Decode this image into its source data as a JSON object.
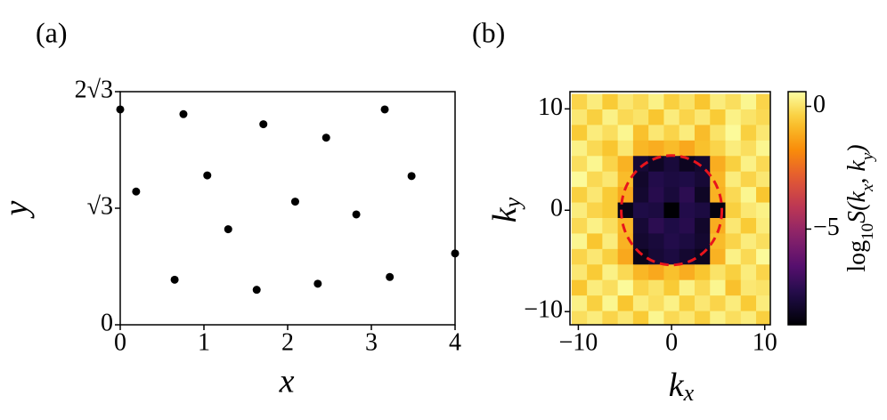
{
  "chart_data": [
    {
      "type": "scatter",
      "label": "(a)",
      "xlabel": "x",
      "ylabel": "y",
      "x": [
        0,
        0.755,
        1.71,
        2.46,
        3.16,
        0.19,
        1.04,
        2.09,
        2.82,
        3.48,
        1.29,
        0.65,
        1.63,
        2.36,
        3.22,
        4.0
      ],
      "y": [
        3.2,
        3.13,
        2.98,
        2.78,
        3.2,
        1.98,
        2.22,
        1.83,
        1.64,
        2.21,
        1.42,
        0.67,
        0.52,
        0.61,
        0.71,
        1.06
      ],
      "color": "#000000",
      "xlim": [
        0,
        4
      ],
      "ylim": [
        0,
        3.4641016
      ],
      "xticks": [
        0,
        1,
        2,
        3,
        4
      ],
      "yticks": [
        0,
        {
          "value": 1.7320508,
          "label": "√3"
        },
        {
          "value": 3.4641016,
          "label": "2√3"
        }
      ]
    },
    {
      "type": "heatmap",
      "label": "(b)",
      "xlabel": {
        "base": "k",
        "sub": "x"
      },
      "ylabel": {
        "base": "k",
        "sub": "y"
      },
      "kx": [
        -9.9,
        -8.25,
        -6.6,
        -4.95,
        -3.3,
        -1.65,
        0,
        1.65,
        3.3,
        4.95,
        6.6,
        8.25,
        9.9
      ],
      "ky": [
        10.71,
        9.18,
        7.65,
        6.12,
        4.59,
        3.06,
        1.53,
        0,
        -1.53,
        -3.06,
        -4.59,
        -6.12,
        -7.65,
        -9.18,
        -10.71
      ],
      "z": [
        [
          -0.3,
          0.2,
          -0.5,
          0.1,
          -0.2,
          0.3,
          -0.4,
          0.0,
          -0.6,
          0.2,
          -0.1,
          0.4,
          -0.3
        ],
        [
          0.1,
          -0.4,
          0.3,
          -0.2,
          0.0,
          -0.6,
          0.2,
          -0.3,
          0.1,
          -0.5,
          0.3,
          0.0,
          -0.2
        ],
        [
          -0.5,
          0.2,
          -0.1,
          0.4,
          -0.7,
          0.1,
          -0.3,
          0.2,
          -0.8,
          0.0,
          0.5,
          -0.4,
          0.1
        ],
        [
          0.3,
          -0.2,
          -0.6,
          0.1,
          -0.9,
          -1.1,
          -0.8,
          -1.2,
          -0.7,
          -0.3,
          0.2,
          -0.1,
          0.4
        ],
        [
          -0.1,
          0.4,
          -0.3,
          -1.0,
          -8.0,
          -8.3,
          -7.9,
          -8.4,
          -8.1,
          -1.1,
          -0.4,
          0.3,
          -0.2
        ],
        [
          0.5,
          -0.2,
          0.1,
          -0.8,
          -8.2,
          -7.6,
          -7.8,
          -7.7,
          -8.0,
          -0.9,
          0.2,
          -0.3,
          0.1
        ],
        [
          -0.4,
          0.1,
          -0.5,
          -1.2,
          -8.1,
          -7.5,
          -7.9,
          -7.4,
          -8.3,
          -1.0,
          -0.2,
          0.4,
          -0.6
        ],
        [
          0.2,
          -0.3,
          -0.5,
          -8.6,
          -7.7,
          -7.8,
          -8.9,
          -7.6,
          -7.8,
          -8.7,
          -0.4,
          0.1,
          0.3
        ],
        [
          -0.2,
          0.3,
          -0.1,
          -0.9,
          -8.0,
          -7.4,
          -7.7,
          -7.5,
          -8.2,
          -1.1,
          0.1,
          -0.5,
          0.2
        ],
        [
          0.4,
          -0.6,
          0.2,
          -1.0,
          -8.1,
          -7.9,
          -7.6,
          -7.8,
          -8.1,
          -0.8,
          -0.3,
          0.2,
          -0.1
        ],
        [
          -0.3,
          0.1,
          -0.4,
          -1.2,
          -8.5,
          -8.0,
          -7.8,
          -8.1,
          -8.4,
          -1.0,
          0.3,
          -0.2,
          0.5
        ],
        [
          0.1,
          -0.5,
          0.3,
          -0.2,
          -0.9,
          -1.2,
          -0.7,
          -1.1,
          -0.6,
          0.0,
          -0.4,
          0.2,
          -0.3
        ],
        [
          -0.6,
          0.2,
          -0.1,
          0.5,
          -0.3,
          0.0,
          -0.5,
          0.3,
          -0.2,
          0.4,
          -0.7,
          0.1,
          0.0
        ],
        [
          0.3,
          -0.4,
          0.4,
          -0.6,
          0.2,
          -0.1,
          0.3,
          -0.4,
          0.1,
          -0.3,
          0.2,
          -0.5,
          0.2
        ],
        [
          -0.1,
          0.2,
          -0.3,
          0.1,
          -0.5,
          0.4,
          -0.2,
          0.1,
          -0.4,
          0.3,
          -0.1,
          0.2,
          -0.4
        ]
      ],
      "colormap": "inferno",
      "xlim": [
        -10.9,
        10.6
      ],
      "ylim": [
        -11.3,
        11.7
      ],
      "xticks": [
        {
          "value": -10,
          "label": "−10"
        },
        0,
        10
      ],
      "yticks": [
        {
          "value": -10,
          "label": "−10"
        },
        0,
        10
      ],
      "circle": {
        "center": [
          0,
          0
        ],
        "radius": 5.4,
        "color": "#e8141c"
      },
      "zlim": [
        -8.9,
        0.6
      ],
      "colorbar_ticks": [
        0,
        {
          "value": -5,
          "label": "−5"
        }
      ],
      "colorbar_label": [
        {
          "text": "log"
        },
        {
          "text": "10",
          "sub": true
        },
        {
          "text": "S(k"
        },
        {
          "text": "x",
          "sub": true
        },
        {
          "text": ", k"
        },
        {
          "text": "y",
          "sub": true
        },
        {
          "text": ")"
        }
      ]
    }
  ]
}
